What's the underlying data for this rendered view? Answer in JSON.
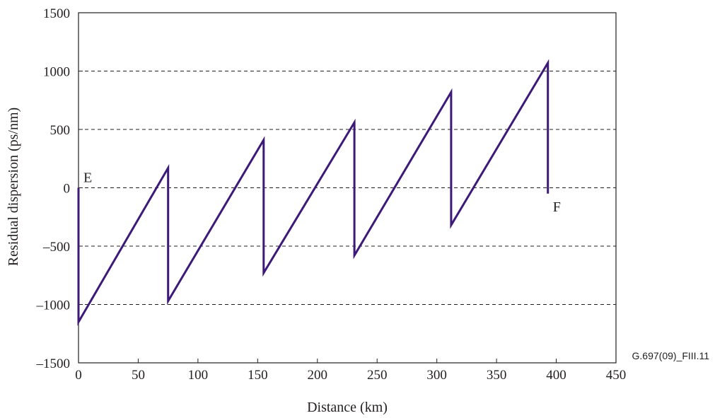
{
  "chart_data": {
    "type": "line",
    "xlabel": "Distance (km)",
    "ylabel": "Residual dispersion (ps/nm)",
    "xlim": [
      0,
      450
    ],
    "ylim": [
      -1500,
      1500
    ],
    "x_ticks": [
      "0",
      "50",
      "100",
      "150",
      "200",
      "250",
      "300",
      "350",
      "400",
      "450"
    ],
    "y_ticks": [
      "1500",
      "1000",
      "500",
      "0",
      "–500",
      "–1000",
      "–1500"
    ],
    "y_gridlines": [
      1000,
      500,
      0,
      -500,
      -1000
    ],
    "grid": "horizontal dashed",
    "series": [
      {
        "color": "#3d1a78",
        "x": [
          0,
          0,
          75,
          75,
          155,
          155,
          231,
          231,
          312,
          312,
          393,
          393
        ],
        "y": [
          0,
          -1150,
          170,
          -970,
          410,
          -730,
          560,
          -580,
          820,
          -320,
          1070,
          -50
        ]
      }
    ],
    "annotations": [
      {
        "text": "E",
        "x": 0,
        "y": 0
      },
      {
        "text": "F",
        "x": 393,
        "y": -50
      }
    ],
    "figure_id": "G.697(09)_FIII.11"
  }
}
